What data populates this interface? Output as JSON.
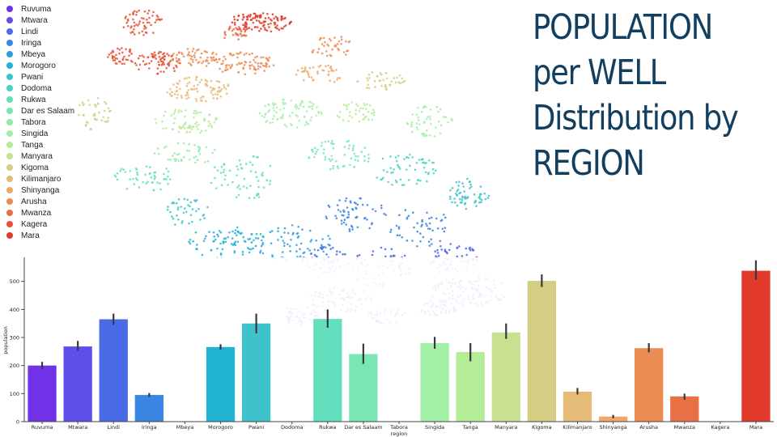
{
  "slide": {
    "title": "POPULATION per WELL Distribution by REGION"
  },
  "legend": {
    "items": [
      {
        "label": "Ruvuma",
        "color": "#7132e8"
      },
      {
        "label": "Mtwara",
        "color": "#5e4fe9"
      },
      {
        "label": "Lindi",
        "color": "#4b6ae6"
      },
      {
        "label": "Iringa",
        "color": "#3c85e2"
      },
      {
        "label": "Mbeya",
        "color": "#2e9ddf"
      },
      {
        "label": "Morogoro",
        "color": "#21b2d4"
      },
      {
        "label": "Pwani",
        "color": "#3ec3cc"
      },
      {
        "label": "Dodoma",
        "color": "#49d3c4"
      },
      {
        "label": "Rukwa",
        "color": "#62dfbd"
      },
      {
        "label": "Dar es Salaam",
        "color": "#79e6b3"
      },
      {
        "label": "Tabora",
        "color": "#93eba7"
      },
      {
        "label": "Singida",
        "color": "#a3efa6"
      },
      {
        "label": "Tanga",
        "color": "#b4ec97"
      },
      {
        "label": "Manyara",
        "color": "#c8e08f"
      },
      {
        "label": "Kigoma",
        "color": "#d4cd84"
      },
      {
        "label": "Kilimanjaro",
        "color": "#e5bb78"
      },
      {
        "label": "Shinyanga",
        "color": "#eda86a"
      },
      {
        "label": "Arusha",
        "color": "#eb8d53"
      },
      {
        "label": "Mwanza",
        "color": "#e96f45"
      },
      {
        "label": "Kagera",
        "color": "#e55236"
      },
      {
        "label": "Mara",
        "color": "#e13a2a"
      }
    ]
  },
  "chart_data": {
    "type": "bar",
    "xlabel": "region",
    "ylabel": "population",
    "ylim": [
      0,
      580
    ],
    "yticks": [
      0,
      100,
      200,
      300,
      400,
      500
    ],
    "grid": false,
    "categories": [
      "Ruvuma",
      "Mtwara",
      "Lindi",
      "Iringa",
      "Mbeya",
      "Morogoro",
      "Pwani",
      "Dodoma",
      "Rukwa",
      "Dar es Salaam",
      "Tabora",
      "Singida",
      "Tanga",
      "Manyara",
      "Kigoma",
      "Kilimanjaro",
      "Shinyanga",
      "Arusha",
      "Mwanza",
      "Kagera",
      "Mara"
    ],
    "values": [
      200,
      268,
      365,
      95,
      0,
      266,
      350,
      0,
      366,
      241,
      0,
      280,
      248,
      318,
      502,
      107,
      18,
      262,
      90,
      0,
      538
    ],
    "error_low": [
      187,
      253,
      345,
      88,
      0,
      257,
      315,
      0,
      335,
      206,
      0,
      260,
      215,
      295,
      480,
      97,
      12,
      247,
      78,
      0,
      505
    ],
    "error_high": [
      213,
      288,
      385,
      102,
      0,
      276,
      385,
      0,
      400,
      278,
      0,
      302,
      280,
      350,
      525,
      120,
      24,
      280,
      100,
      0,
      575
    ],
    "colors": [
      "#7132e8",
      "#5e4fe9",
      "#4b6ae6",
      "#3c85e2",
      "#2e9ddf",
      "#21b2d4",
      "#3ec3cc",
      "#49d3c4",
      "#62dfbd",
      "#79e6b3",
      "#93eba7",
      "#a3efa6",
      "#b4ec97",
      "#c8e08f",
      "#d4cd84",
      "#e5bb78",
      "#eda86a",
      "#eb8d53",
      "#e96f45",
      "#e55236",
      "#e13a2a"
    ]
  }
}
